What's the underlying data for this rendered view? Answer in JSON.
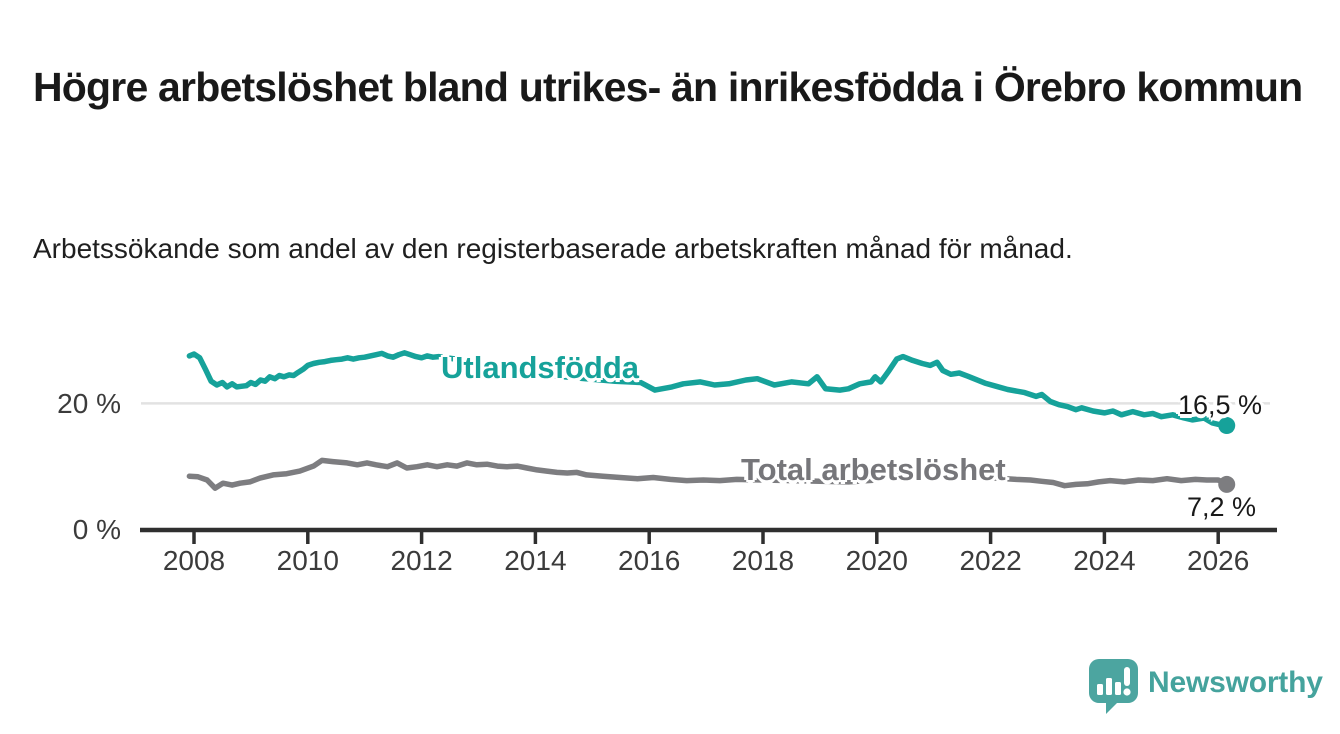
{
  "header": {
    "title": "Högre arbetslöshet bland utrikes- än inrikesfödda i Örebro kommun",
    "subtitle": "Arbetssökande som andel av den registerbaserade arbetskraften månad för månad."
  },
  "chart_data": {
    "type": "line",
    "title": "Högre arbetslöshet bland utrikes- än inrikesfödda i Örebro kommun",
    "subtitle": "Arbetssökande som andel av den registerbaserade arbetskraften månad för månad.",
    "unit": "%",
    "x_domain": [
      2007.9,
      2026.95
    ],
    "y_domain": [
      0,
      29
    ],
    "grid": "single horizontal gridline at y=20",
    "gridline_value": 20,
    "legend_position": "inline-labels-on-lines",
    "y_ticks": [
      {
        "label": "0 %",
        "value": 0
      },
      {
        "label": "20 %",
        "value": 20
      }
    ],
    "x_ticks": [
      {
        "label": "2008",
        "year": 2008
      },
      {
        "label": "2010",
        "year": 2010
      },
      {
        "label": "2012",
        "year": 2012
      },
      {
        "label": "2014",
        "year": 2014
      },
      {
        "label": "2016",
        "year": 2016
      },
      {
        "label": "2018",
        "year": 2018
      },
      {
        "label": "2020",
        "year": 2020
      },
      {
        "label": "2022",
        "year": 2022
      },
      {
        "label": "2024",
        "year": 2024
      },
      {
        "label": "2026",
        "year": 2026
      }
    ],
    "series": [
      {
        "name": "Utlandsfödda",
        "color": "#16a29a",
        "end_label": "16,5 %",
        "end_value": 16.5,
        "points": [
          [
            2007.92,
            27.5
          ],
          [
            2008.0,
            27.8
          ],
          [
            2008.1,
            27.2
          ],
          [
            2008.2,
            25.4
          ],
          [
            2008.3,
            23.5
          ],
          [
            2008.4,
            22.9
          ],
          [
            2008.5,
            23.3
          ],
          [
            2008.58,
            22.6
          ],
          [
            2008.67,
            23.1
          ],
          [
            2008.75,
            22.6
          ],
          [
            2008.83,
            22.7
          ],
          [
            2008.92,
            22.8
          ],
          [
            2009.0,
            23.3
          ],
          [
            2009.08,
            23.0
          ],
          [
            2009.17,
            23.7
          ],
          [
            2009.25,
            23.5
          ],
          [
            2009.33,
            24.2
          ],
          [
            2009.42,
            23.9
          ],
          [
            2009.5,
            24.4
          ],
          [
            2009.58,
            24.2
          ],
          [
            2009.67,
            24.5
          ],
          [
            2009.75,
            24.4
          ],
          [
            2009.83,
            24.9
          ],
          [
            2009.92,
            25.4
          ],
          [
            2010.0,
            26.0
          ],
          [
            2010.1,
            26.3
          ],
          [
            2010.2,
            26.5
          ],
          [
            2010.3,
            26.6
          ],
          [
            2010.4,
            26.8
          ],
          [
            2010.5,
            26.9
          ],
          [
            2010.6,
            27.0
          ],
          [
            2010.7,
            27.2
          ],
          [
            2010.8,
            27.0
          ],
          [
            2010.9,
            27.2
          ],
          [
            2011.0,
            27.3
          ],
          [
            2011.1,
            27.5
          ],
          [
            2011.2,
            27.7
          ],
          [
            2011.3,
            27.9
          ],
          [
            2011.4,
            27.5
          ],
          [
            2011.5,
            27.3
          ],
          [
            2011.6,
            27.7
          ],
          [
            2011.7,
            28.0
          ],
          [
            2011.8,
            27.7
          ],
          [
            2011.9,
            27.4
          ],
          [
            2012.0,
            27.2
          ],
          [
            2012.1,
            27.5
          ],
          [
            2012.2,
            27.3
          ],
          [
            2012.3,
            27.4
          ],
          [
            2012.6,
            27.0
          ],
          [
            2013.0,
            26.4
          ],
          [
            2013.5,
            25.6
          ],
          [
            2014.0,
            24.9
          ],
          [
            2014.5,
            24.2
          ],
          [
            2015.0,
            23.8
          ],
          [
            2015.4,
            23.5
          ],
          [
            2015.85,
            23.3
          ],
          [
            2016.1,
            22.1
          ],
          [
            2016.4,
            22.6
          ],
          [
            2016.6,
            23.1
          ],
          [
            2016.9,
            23.4
          ],
          [
            2017.15,
            22.9
          ],
          [
            2017.4,
            23.1
          ],
          [
            2017.7,
            23.7
          ],
          [
            2017.9,
            23.9
          ],
          [
            2018.2,
            22.9
          ],
          [
            2018.5,
            23.4
          ],
          [
            2018.8,
            23.1
          ],
          [
            2018.95,
            24.2
          ],
          [
            2019.1,
            22.3
          ],
          [
            2019.35,
            22.1
          ],
          [
            2019.5,
            22.3
          ],
          [
            2019.7,
            23.1
          ],
          [
            2019.9,
            23.4
          ],
          [
            2019.97,
            24.2
          ],
          [
            2020.07,
            23.4
          ],
          [
            2020.2,
            25.0
          ],
          [
            2020.35,
            27.0
          ],
          [
            2020.46,
            27.4
          ],
          [
            2020.63,
            26.8
          ],
          [
            2020.8,
            26.3
          ],
          [
            2020.94,
            26.0
          ],
          [
            2021.06,
            26.5
          ],
          [
            2021.16,
            25.2
          ],
          [
            2021.3,
            24.6
          ],
          [
            2021.45,
            24.8
          ],
          [
            2021.6,
            24.3
          ],
          [
            2021.9,
            23.2
          ],
          [
            2022.1,
            22.7
          ],
          [
            2022.3,
            22.2
          ],
          [
            2022.6,
            21.7
          ],
          [
            2022.8,
            21.1
          ],
          [
            2022.9,
            21.4
          ],
          [
            2023.05,
            20.3
          ],
          [
            2023.2,
            19.8
          ],
          [
            2023.35,
            19.5
          ],
          [
            2023.5,
            19.0
          ],
          [
            2023.6,
            19.3
          ],
          [
            2023.8,
            18.8
          ],
          [
            2024.0,
            18.5
          ],
          [
            2024.15,
            18.8
          ],
          [
            2024.3,
            18.2
          ],
          [
            2024.5,
            18.7
          ],
          [
            2024.7,
            18.2
          ],
          [
            2024.85,
            18.4
          ],
          [
            2025.0,
            17.9
          ],
          [
            2025.2,
            18.2
          ],
          [
            2025.4,
            17.7
          ],
          [
            2025.55,
            17.4
          ],
          [
            2025.75,
            17.7
          ],
          [
            2025.9,
            16.9
          ],
          [
            2026.0,
            16.7
          ],
          [
            2026.15,
            16.5
          ]
        ]
      },
      {
        "name": "Total arbetslöshet",
        "color": "#7d7d80",
        "end_label": "7,2 %",
        "end_value": 7.2,
        "points": [
          [
            2007.92,
            8.5
          ],
          [
            2008.07,
            8.4
          ],
          [
            2008.23,
            7.9
          ],
          [
            2008.37,
            6.6
          ],
          [
            2008.51,
            7.4
          ],
          [
            2008.67,
            7.1
          ],
          [
            2008.81,
            7.4
          ],
          [
            2008.98,
            7.6
          ],
          [
            2009.16,
            8.2
          ],
          [
            2009.39,
            8.7
          ],
          [
            2009.63,
            8.9
          ],
          [
            2009.86,
            9.3
          ],
          [
            2010.1,
            10.1
          ],
          [
            2010.25,
            11.0
          ],
          [
            2010.44,
            10.8
          ],
          [
            2010.69,
            10.6
          ],
          [
            2010.87,
            10.3
          ],
          [
            2011.04,
            10.6
          ],
          [
            2011.2,
            10.3
          ],
          [
            2011.4,
            10.0
          ],
          [
            2011.57,
            10.6
          ],
          [
            2011.74,
            9.8
          ],
          [
            2011.92,
            10.0
          ],
          [
            2012.1,
            10.3
          ],
          [
            2012.27,
            10.0
          ],
          [
            2012.45,
            10.3
          ],
          [
            2012.62,
            10.1
          ],
          [
            2012.8,
            10.6
          ],
          [
            2012.97,
            10.3
          ],
          [
            2013.15,
            10.4
          ],
          [
            2013.33,
            10.1
          ],
          [
            2013.5,
            10.0
          ],
          [
            2013.68,
            10.1
          ],
          [
            2013.85,
            9.8
          ],
          [
            2014.03,
            9.5
          ],
          [
            2014.2,
            9.3
          ],
          [
            2014.38,
            9.1
          ],
          [
            2014.56,
            9.0
          ],
          [
            2014.73,
            9.1
          ],
          [
            2014.9,
            8.7
          ],
          [
            2015.19,
            8.5
          ],
          [
            2015.49,
            8.3
          ],
          [
            2015.79,
            8.1
          ],
          [
            2016.07,
            8.3
          ],
          [
            2016.37,
            8.0
          ],
          [
            2016.66,
            7.8
          ],
          [
            2016.95,
            7.9
          ],
          [
            2017.24,
            7.8
          ],
          [
            2017.54,
            8.0
          ],
          [
            2018.0,
            7.9
          ],
          [
            2018.5,
            7.8
          ],
          [
            2019.0,
            7.7
          ],
          [
            2019.5,
            7.6
          ],
          [
            2020.0,
            7.9
          ],
          [
            2020.4,
            9.3
          ],
          [
            2020.8,
            9.5
          ],
          [
            2021.2,
            9.0
          ],
          [
            2021.7,
            8.6
          ],
          [
            2022.1,
            8.2
          ],
          [
            2022.45,
            8.0
          ],
          [
            2022.7,
            7.9
          ],
          [
            2022.9,
            7.7
          ],
          [
            2023.1,
            7.5
          ],
          [
            2023.3,
            7.0
          ],
          [
            2023.5,
            7.2
          ],
          [
            2023.7,
            7.3
          ],
          [
            2023.9,
            7.6
          ],
          [
            2024.1,
            7.8
          ],
          [
            2024.35,
            7.6
          ],
          [
            2024.6,
            7.9
          ],
          [
            2024.85,
            7.8
          ],
          [
            2025.1,
            8.1
          ],
          [
            2025.35,
            7.8
          ],
          [
            2025.6,
            8.0
          ],
          [
            2025.8,
            7.9
          ],
          [
            2026.0,
            7.9
          ],
          [
            2026.15,
            7.2
          ]
        ]
      }
    ],
    "colors": {
      "teal_line": "#16a29a",
      "gray_line": "#7d7d80",
      "gray_label": "#76767a",
      "axis": "#2f2f2f",
      "gridline": "#e2e2e2",
      "tick_text": "#3b3b3b",
      "title_text": "#191919",
      "logo_teal": "#4ca5a0"
    }
  },
  "footer": {
    "brand": "Newsworthy"
  }
}
